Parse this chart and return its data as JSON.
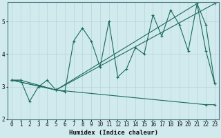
{
  "xlabel": "Humidex (Indice chaleur)",
  "ylabel": "",
  "background_color": "#d0eaee",
  "grid_color": "#b8d4d8",
  "line_color": "#1a6b5a",
  "xlim": [
    -0.5,
    23.5
  ],
  "ylim": [
    2.0,
    5.6
  ],
  "yticks": [
    2,
    3,
    4,
    5
  ],
  "xticks": [
    0,
    1,
    2,
    3,
    4,
    5,
    6,
    7,
    8,
    9,
    10,
    11,
    12,
    13,
    14,
    15,
    16,
    17,
    18,
    19,
    20,
    21,
    22,
    23
  ],
  "line1_x": [
    0,
    1,
    2,
    3,
    4,
    5,
    6,
    7,
    8,
    9,
    10,
    11,
    12,
    13,
    14,
    15,
    16,
    17,
    18,
    19,
    20,
    21,
    22,
    23
  ],
  "line1_y": [
    3.2,
    3.2,
    2.55,
    3.0,
    3.2,
    2.9,
    2.85,
    4.4,
    4.8,
    4.4,
    3.6,
    5.0,
    3.3,
    3.55,
    4.2,
    4.0,
    5.2,
    4.55,
    5.35,
    4.9,
    4.1,
    5.55,
    4.1,
    3.1
  ],
  "line2_x": [
    0,
    5,
    21,
    22,
    23
  ],
  "line2_y": [
    3.2,
    2.9,
    5.55,
    4.9,
    3.1
  ],
  "line3_x": [
    0,
    1,
    5,
    22,
    23
  ],
  "line3_y": [
    3.2,
    3.2,
    2.9,
    2.45,
    2.45
  ],
  "line4_x": [
    0,
    5,
    23
  ],
  "line4_y": [
    3.2,
    2.9,
    5.55
  ]
}
